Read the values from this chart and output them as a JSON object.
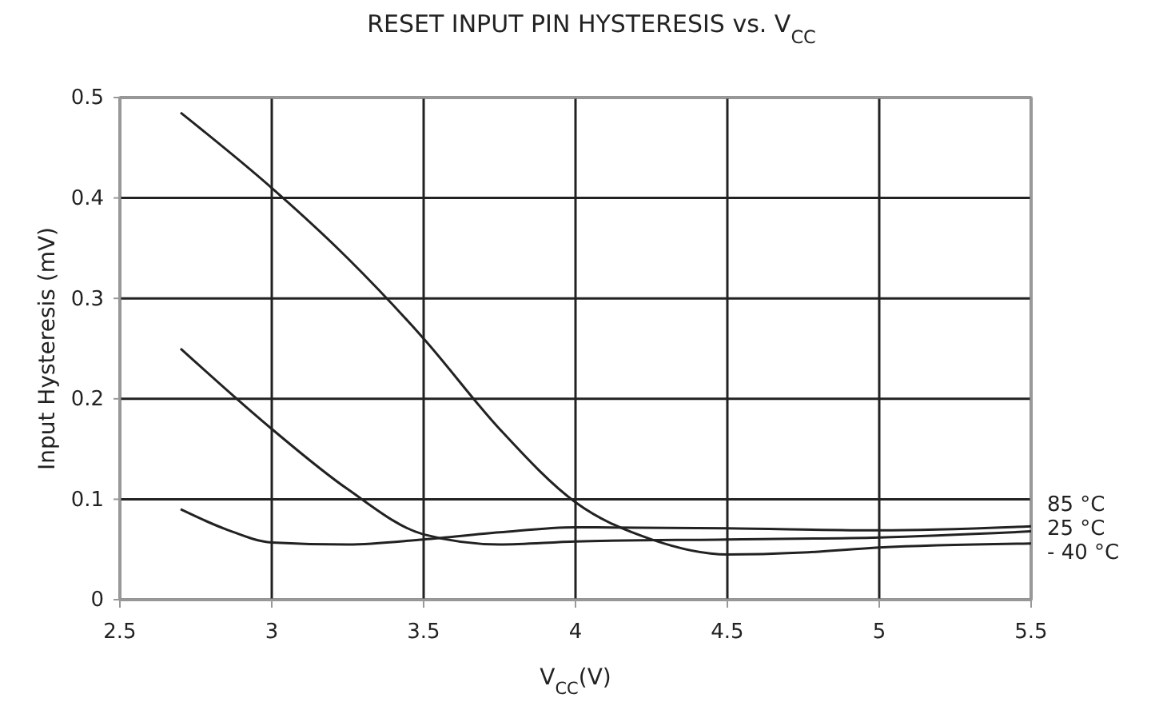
{
  "chart_data": {
    "type": "line",
    "title": "RESET INPUT PIN HYSTERESIS vs. V$_{CC}$",
    "xlabel": "V$_{CC}$(V)",
    "ylabel": "Input Hysteresis (mV)",
    "xlim": [
      2.5,
      5.5
    ],
    "xticks": [
      2.5,
      3,
      3.5,
      4,
      4.5,
      5,
      5.5
    ],
    "ylim": [
      0,
      0.5
    ],
    "yticks": [
      0,
      0.1,
      0.2,
      0.3,
      0.4,
      0.5
    ],
    "grid": true,
    "marker": "none",
    "line_style": "solid",
    "series": [
      {
        "name": "85 °C",
        "color": "#222222",
        "x": [
          2.7,
          2.85,
          3.0,
          3.25,
          3.5,
          3.75,
          4.0,
          4.5,
          5.0,
          5.5
        ],
        "values": [
          0.09,
          0.07,
          0.057,
          0.055,
          0.06,
          0.067,
          0.072,
          0.071,
          0.069,
          0.073
        ]
      },
      {
        "name": "25 °C",
        "color": "#222222",
        "x": [
          2.7,
          3.0,
          3.25,
          3.5,
          3.75,
          4.0,
          4.5,
          5.0,
          5.5
        ],
        "values": [
          0.25,
          0.17,
          0.11,
          0.065,
          0.055,
          0.058,
          0.06,
          0.062,
          0.068
        ]
      },
      {
        "name": "- 40 °C",
        "color": "#222222",
        "x": [
          2.7,
          3.0,
          3.25,
          3.5,
          3.75,
          4.0,
          4.25,
          4.5,
          4.75,
          5.0,
          5.5
        ],
        "values": [
          0.485,
          0.41,
          0.34,
          0.26,
          0.17,
          0.097,
          0.06,
          0.045,
          0.047,
          0.052,
          0.056
        ]
      }
    ]
  }
}
